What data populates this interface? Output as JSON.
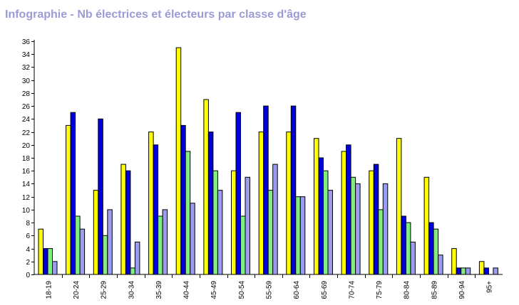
{
  "title": "Infographie - Nb électrices et électeurs par classe d'âge",
  "chart_data": {
    "type": "bar",
    "title": "Infographie - Nb électrices et électeurs par classe d'âge",
    "xlabel": "",
    "ylabel": "",
    "ylim": [
      0,
      36
    ],
    "yticks": [
      0,
      2,
      4,
      6,
      8,
      10,
      12,
      14,
      16,
      18,
      20,
      22,
      24,
      26,
      28,
      30,
      32,
      34,
      36
    ],
    "grid": false,
    "categories": [
      "18-19",
      "20-24",
      "25-29",
      "30-34",
      "35-39",
      "40-44",
      "45-49",
      "50-54",
      "55-59",
      "60-64",
      "65-69",
      "70-74",
      "75-79",
      "80-84",
      "85-89",
      "90-94",
      "95+"
    ],
    "series": [
      {
        "color": "#ffff00",
        "values": [
          7,
          23,
          13,
          17,
          22,
          35,
          27,
          16,
          22,
          22,
          21,
          19,
          16,
          21,
          15,
          4,
          2
        ]
      },
      {
        "color": "#0000dd",
        "values": [
          4,
          25,
          24,
          16,
          20,
          23,
          22,
          25,
          26,
          26,
          18,
          20,
          17,
          9,
          8,
          1,
          1
        ]
      },
      {
        "color": "#7ff07f",
        "values": [
          4,
          9,
          6,
          1,
          9,
          19,
          16,
          9,
          13,
          12,
          16,
          15,
          10,
          8,
          7,
          1,
          0
        ]
      },
      {
        "color": "#9b9bf0",
        "values": [
          2,
          7,
          10,
          5,
          10,
          11,
          13,
          15,
          17,
          12,
          13,
          14,
          14,
          5,
          3,
          1,
          1
        ]
      }
    ]
  }
}
